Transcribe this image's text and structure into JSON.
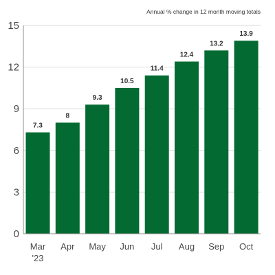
{
  "chart_data": {
    "type": "bar",
    "subtitle": "Annual % change in 12 month moving totals",
    "categories": [
      "Mar\n'23",
      "Apr",
      "May",
      "Jun",
      "Jul",
      "Aug",
      "Sep",
      "Oct"
    ],
    "values": [
      7.3,
      8,
      9.3,
      10.5,
      11.4,
      12.4,
      13.2,
      13.9
    ],
    "data_labels": [
      "7.3",
      "8",
      "9.3",
      "10.5",
      "11.4",
      "12.4",
      "13.2",
      "13.9"
    ],
    "yticks": [
      0,
      3,
      6,
      9,
      12,
      15
    ],
    "ylim": [
      0,
      15
    ],
    "grid": true,
    "bar_color": "#036B32",
    "xlabel": "",
    "ylabel": ""
  }
}
